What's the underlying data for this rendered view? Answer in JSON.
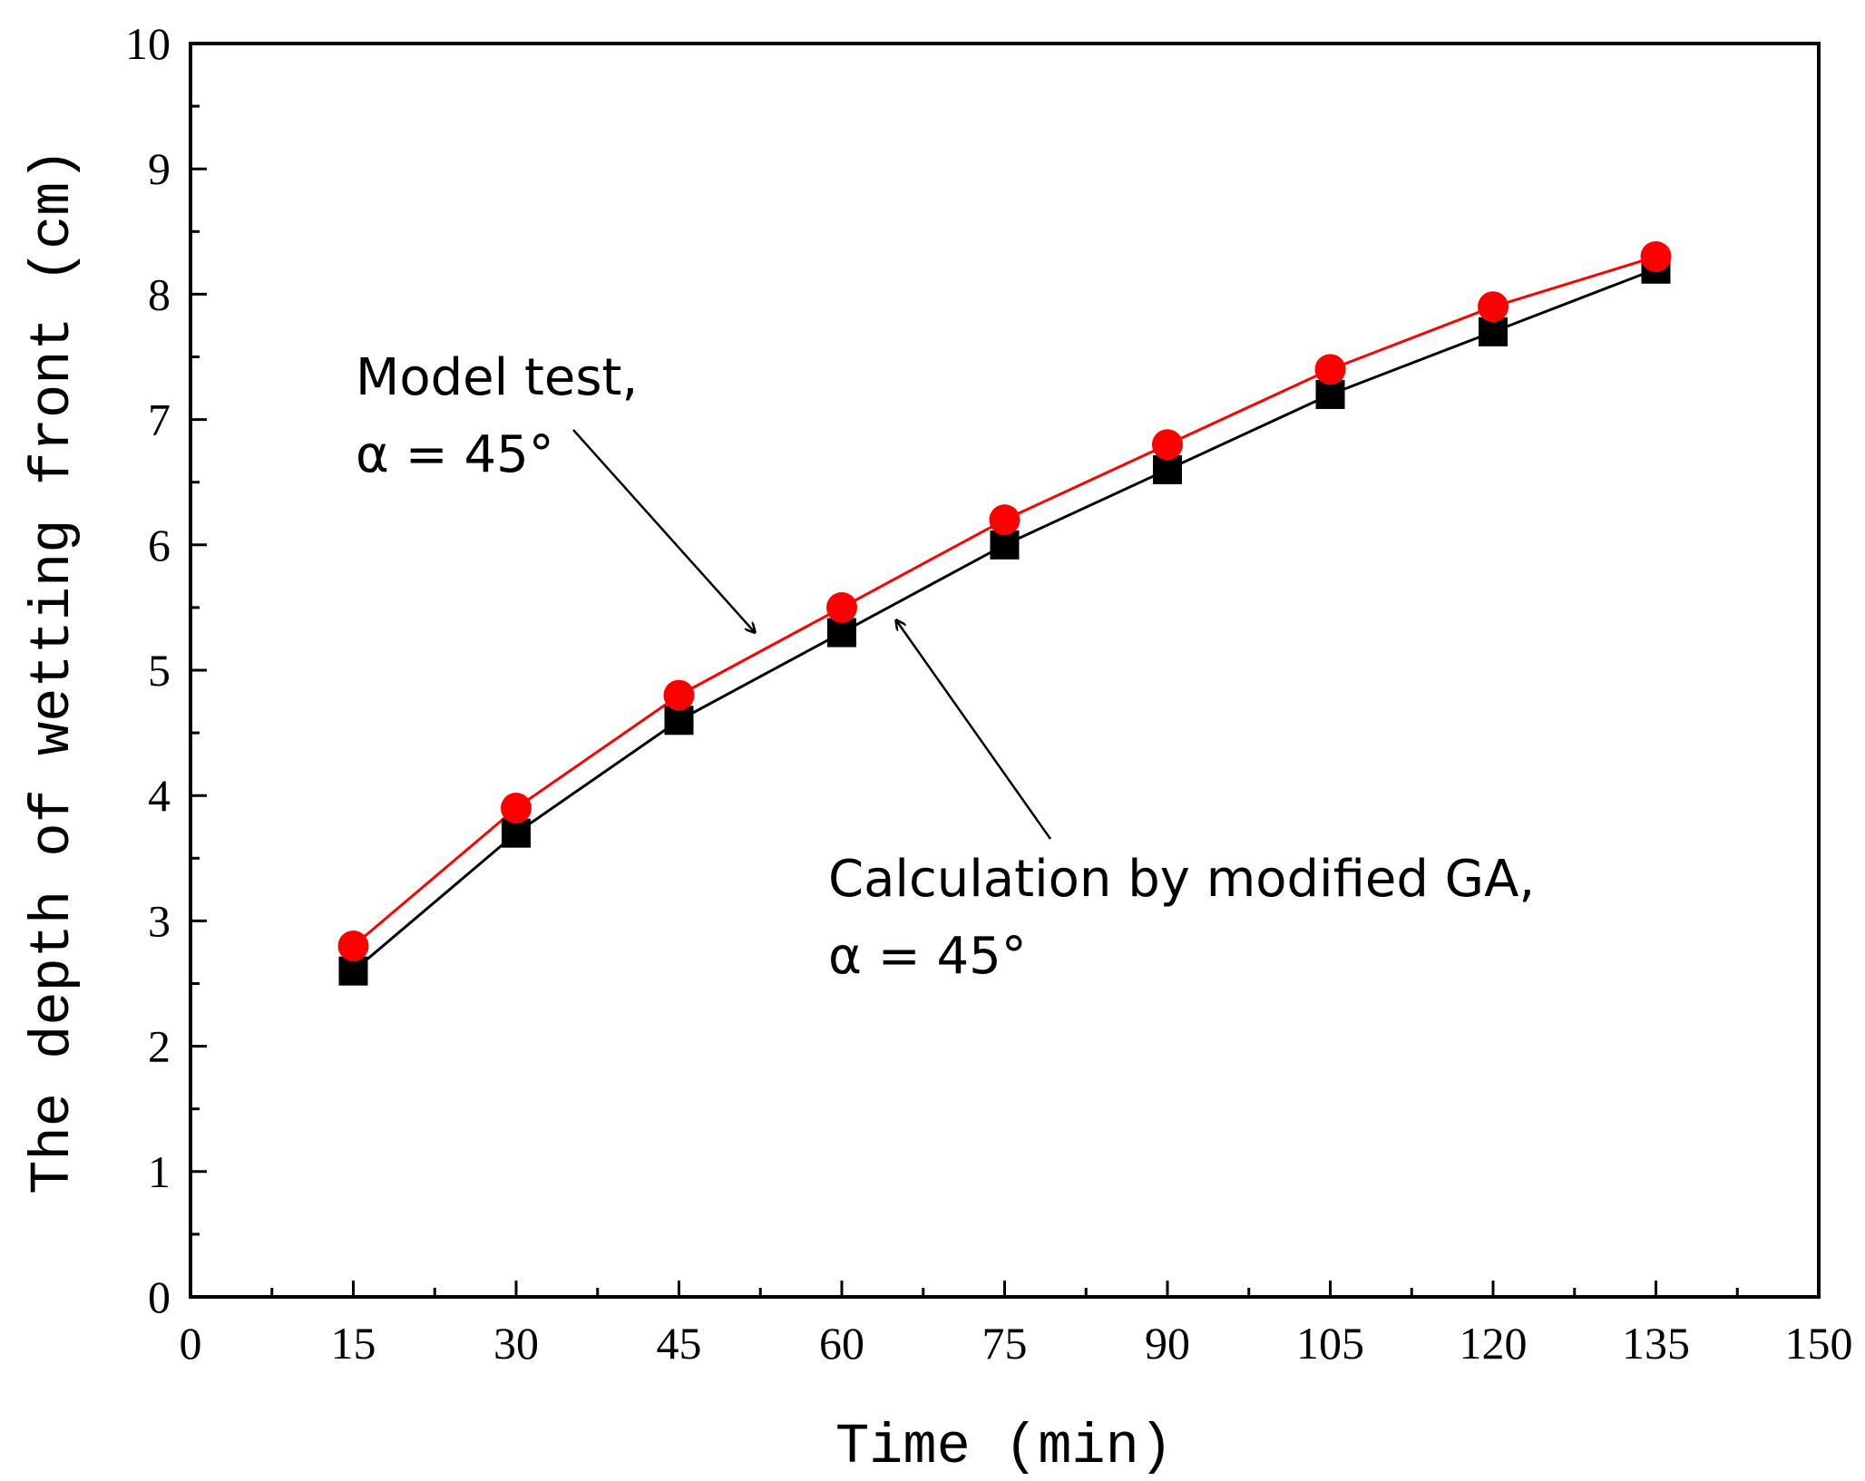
{
  "chart_data": {
    "type": "line",
    "title": "",
    "xlabel": "Time (min)",
    "ylabel": "The depth of wetting front (cm)",
    "xlim": [
      0,
      150
    ],
    "ylim": [
      0,
      10
    ],
    "xticks": [
      0,
      15,
      30,
      45,
      60,
      75,
      90,
      105,
      120,
      135,
      150
    ],
    "xtick_labels": [
      "0",
      "15",
      "30",
      "45",
      "60",
      "75",
      "90",
      "105",
      "120",
      "135",
      "150"
    ],
    "yticks": [
      0,
      1,
      2,
      3,
      4,
      5,
      6,
      7,
      8,
      9,
      10
    ],
    "ytick_labels": [
      "0",
      "1",
      "2",
      "3",
      "4",
      "5",
      "6",
      "7",
      "8",
      "9",
      "10"
    ],
    "grid": false,
    "x": [
      15,
      30,
      45,
      60,
      75,
      90,
      105,
      120,
      135
    ],
    "series": [
      {
        "name": "Calculation by modified GA, α = 45°",
        "marker": "square",
        "color": "#000000",
        "values": [
          2.6,
          3.7,
          4.6,
          5.3,
          6.0,
          6.6,
          7.2,
          7.7,
          8.2
        ]
      },
      {
        "name": "Model test, α = 45°",
        "marker": "circle",
        "color": "#ff0000",
        "values": [
          2.8,
          3.9,
          4.8,
          5.5,
          6.2,
          6.8,
          7.4,
          7.9,
          8.3
        ]
      }
    ],
    "annotations": [
      {
        "line1": "Model test,",
        "line2": "α = 45°",
        "points_to": {
          "x": 52,
          "y": 5.3
        }
      },
      {
        "line1": "Calculation by modified GA,",
        "line2": "α = 45°",
        "points_to": {
          "x": 65,
          "y": 5.4
        }
      }
    ]
  }
}
